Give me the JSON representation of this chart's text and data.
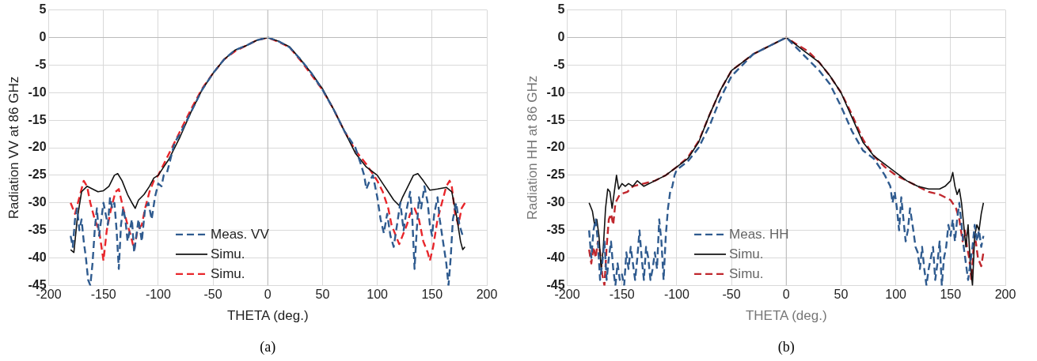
{
  "chart_data": [
    {
      "type": "line",
      "xlabel": "THETA (deg.)",
      "ylabel": "Radiation VV at 86 GHz",
      "annotations": [
        "(a)"
      ],
      "xlim": [
        -200,
        200
      ],
      "xticks": [
        -200,
        -150,
        -100,
        -50,
        0,
        50,
        100,
        150,
        200
      ],
      "ylim": [
        -45,
        5
      ],
      "yticks": [
        -45,
        -40,
        -35,
        -30,
        -25,
        -20,
        -15,
        -10,
        -5,
        0,
        5
      ],
      "grid": true,
      "legend": "bottom",
      "series": [
        {
          "name": "Meas. VV",
          "color": "#2f5b8f",
          "line_style": "dashed",
          "x": [
            -180,
            -178,
            -176,
            -174,
            -172,
            -170,
            -168,
            -166,
            -164,
            -162,
            -160,
            -158,
            -156,
            -154,
            -152,
            -150,
            -148,
            -146,
            -144,
            -142,
            -140,
            -138,
            -136,
            -134,
            -132,
            -130,
            -128,
            -126,
            -124,
            -122,
            -120,
            -118,
            -115,
            -112,
            -109,
            -106,
            -103,
            -100,
            -97,
            -95,
            -92,
            -90,
            -85,
            -80,
            -70,
            -60,
            -50,
            -40,
            -30,
            -20,
            -10,
            0,
            10,
            20,
            30,
            40,
            50,
            60,
            70,
            80,
            85,
            88,
            90,
            93,
            96,
            100,
            103,
            106,
            109,
            112,
            115,
            118,
            121,
            124,
            127,
            130,
            132,
            134,
            136,
            138,
            140,
            143,
            146,
            148,
            150,
            152,
            155,
            157,
            160,
            163,
            165,
            167,
            169,
            172,
            175,
            178
          ],
          "values": [
            -36,
            -38,
            -33,
            -31,
            -35,
            -33,
            -37,
            -40,
            -44,
            -45,
            -41,
            -35,
            -31,
            -36,
            -33,
            -30,
            -32,
            -34,
            -29,
            -31,
            -30,
            -35,
            -42,
            -34,
            -31,
            -33,
            -37,
            -35,
            -33,
            -39,
            -36,
            -33,
            -37,
            -31,
            -30,
            -33,
            -29,
            -26.5,
            -27,
            -25,
            -24.5,
            -23,
            -19,
            -17.5,
            -13.5,
            -9.5,
            -6.5,
            -4,
            -2.3,
            -1.5,
            -0.5,
            0,
            -0.7,
            -1.8,
            -4,
            -6.5,
            -9.5,
            -13,
            -17,
            -20,
            -23,
            -25,
            -27.5,
            -26,
            -25,
            -29,
            -33,
            -35.5,
            -32,
            -36,
            -38,
            -34,
            -30,
            -35,
            -31,
            -28,
            -33,
            -42,
            -35,
            -29,
            -31,
            -27,
            -30,
            -34,
            -36,
            -32,
            -29,
            -33,
            -37,
            -41,
            -45,
            -40,
            -33,
            -30,
            -34,
            -36
          ]
        },
        {
          "name": "Simu.",
          "color": "#111111",
          "line_style": "solid",
          "x": [
            -180,
            -177,
            -174,
            -170,
            -165,
            -160,
            -155,
            -150,
            -145,
            -140,
            -137,
            -133,
            -128,
            -124,
            -121,
            -118,
            -113,
            -108,
            -104,
            -100,
            -95,
            -90,
            -80,
            -70,
            -60,
            -50,
            -40,
            -30,
            -20,
            -10,
            0,
            10,
            20,
            30,
            40,
            50,
            60,
            70,
            80,
            90,
            100,
            105,
            110,
            115,
            120,
            123,
            128,
            133,
            137,
            142,
            148,
            155,
            163,
            168,
            172,
            176,
            178,
            180
          ],
          "values": [
            -38.5,
            -39,
            -33,
            -28,
            -27,
            -27.5,
            -28,
            -27.8,
            -27,
            -25,
            -24.7,
            -26,
            -28.5,
            -30,
            -31,
            -29.5,
            -28.5,
            -27,
            -25.5,
            -25,
            -23.5,
            -22,
            -18,
            -13.5,
            -9.5,
            -6.5,
            -4,
            -2.3,
            -1.5,
            -0.5,
            0,
            -0.7,
            -1.7,
            -4,
            -6.5,
            -9.3,
            -13,
            -17,
            -21,
            -23.5,
            -25,
            -26.5,
            -28,
            -29.5,
            -30.5,
            -29,
            -27,
            -25,
            -24.7,
            -26,
            -27.7,
            -27.5,
            -27.2,
            -28,
            -32,
            -37,
            -38.5,
            -38
          ]
        },
        {
          "name": "Simu.",
          "color": "#e8262b",
          "line_style": "dashed",
          "x": [
            -180,
            -176,
            -172,
            -168,
            -165,
            -162,
            -158,
            -154,
            -150,
            -147,
            -143,
            -139,
            -136,
            -132,
            -128,
            -125,
            -122,
            -119,
            -115,
            -112,
            -108,
            -104,
            -100,
            -95,
            -90,
            -80,
            -70,
            -60,
            -50,
            -40,
            -30,
            -20,
            -10,
            0,
            10,
            20,
            30,
            40,
            50,
            60,
            70,
            80,
            90,
            95,
            100,
            105,
            110,
            113,
            117,
            120,
            123,
            127,
            130,
            134,
            138,
            142,
            146,
            148,
            151,
            155,
            159,
            163,
            166,
            168,
            171,
            174,
            177,
            180
          ],
          "values": [
            -30,
            -32,
            -29,
            -26,
            -27,
            -30,
            -33,
            -35,
            -40.5,
            -35,
            -31,
            -28,
            -27.5,
            -31,
            -34,
            -36,
            -38.5,
            -35,
            -34,
            -31,
            -28,
            -26,
            -25,
            -23,
            -21,
            -17,
            -13,
            -9.3,
            -6.5,
            -4,
            -2.5,
            -1.5,
            -0.5,
            0,
            -0.8,
            -1.8,
            -4.2,
            -6.8,
            -9.5,
            -13,
            -17,
            -20.5,
            -23,
            -24.5,
            -26,
            -28,
            -31,
            -34,
            -36,
            -37.5,
            -36,
            -34,
            -32,
            -31,
            -33,
            -37,
            -39,
            -40.5,
            -38,
            -33,
            -30,
            -27,
            -26,
            -27,
            -32,
            -34,
            -31,
            -30
          ]
        }
      ]
    },
    {
      "type": "line",
      "xlabel": "THETA (deg.)",
      "ylabel": "Radiation HH at 86 GHz",
      "annotations": [
        "(b)"
      ],
      "xlim": [
        -200,
        200
      ],
      "xticks": [
        -200,
        -150,
        -100,
        -50,
        0,
        50,
        100,
        150,
        200
      ],
      "ylim": [
        -45,
        5
      ],
      "yticks": [
        -45,
        -40,
        -35,
        -30,
        -25,
        -20,
        -15,
        -10,
        -5,
        0,
        5
      ],
      "grid": true,
      "legend": "bottom",
      "series": [
        {
          "name": "Meas. HH",
          "color": "#2f5b8f",
          "line_style": "dashed",
          "x": [
            -180,
            -178,
            -176,
            -174,
            -172,
            -170,
            -168,
            -166,
            -164,
            -162,
            -160,
            -158,
            -156,
            -154,
            -152,
            -150,
            -148,
            -146,
            -144,
            -142,
            -140,
            -138,
            -136,
            -134,
            -132,
            -130,
            -128,
            -126,
            -124,
            -122,
            -120,
            -118,
            -116,
            -114,
            -112,
            -110,
            -108,
            -106,
            -104,
            -102,
            -100,
            -90,
            -80,
            -70,
            -60,
            -50,
            -40,
            -30,
            -20,
            -10,
            0,
            10,
            20,
            30,
            40,
            50,
            60,
            70,
            80,
            85,
            90,
            95,
            97,
            99,
            101,
            103,
            105,
            107,
            109,
            111,
            113,
            116,
            118,
            120,
            122,
            124,
            126,
            128,
            130,
            132,
            134,
            136,
            138,
            140,
            142,
            144,
            146,
            148,
            150,
            152,
            154,
            156,
            158,
            160,
            162,
            164,
            166,
            168,
            170,
            172,
            174,
            176,
            178,
            180
          ],
          "values": [
            -35,
            -40,
            -35,
            -33,
            -37,
            -44,
            -41,
            -37,
            -44,
            -40,
            -37,
            -42,
            -45,
            -41,
            -44,
            -43,
            -45,
            -39,
            -42,
            -38,
            -41,
            -44,
            -40,
            -35,
            -40,
            -44,
            -38,
            -40,
            -44,
            -42,
            -39,
            -42,
            -33,
            -37,
            -44,
            -36,
            -31,
            -28,
            -27,
            -25,
            -24,
            -22.5,
            -20,
            -16,
            -11,
            -7,
            -5,
            -3,
            -2,
            -1,
            0,
            -2,
            -4,
            -6,
            -8.5,
            -12.5,
            -17,
            -20.5,
            -22,
            -23.5,
            -25,
            -27,
            -30,
            -28,
            -31,
            -35,
            -29,
            -33,
            -37,
            -35,
            -31,
            -35,
            -38,
            -39,
            -42,
            -38,
            -42,
            -45,
            -42,
            -40,
            -38,
            -44,
            -41,
            -37,
            -45,
            -40,
            -38,
            -34,
            -36,
            -33,
            -37,
            -33,
            -30,
            -34,
            -38,
            -41,
            -44,
            -41,
            -38,
            -34,
            -37,
            -35,
            -38,
            -36
          ]
        },
        {
          "name": "Simu.",
          "color": "#111111",
          "line_style": "solid",
          "x": [
            -180,
            -177,
            -175,
            -173,
            -171,
            -169,
            -167,
            -165,
            -163,
            -161,
            -159,
            -157,
            -155,
            -153,
            -150,
            -147,
            -144,
            -140,
            -136,
            -130,
            -120,
            -110,
            -100,
            -90,
            -80,
            -70,
            -60,
            -50,
            -40,
            -30,
            -20,
            -10,
            0,
            10,
            20,
            30,
            40,
            50,
            60,
            70,
            80,
            90,
            100,
            110,
            120,
            130,
            140,
            145,
            150,
            152,
            154,
            156,
            158,
            160,
            162,
            164,
            166,
            168,
            170,
            172,
            174,
            176,
            178,
            180
          ],
          "values": [
            -30,
            -31.5,
            -34,
            -33,
            -36,
            -42,
            -38,
            -31,
            -27.5,
            -28,
            -31,
            -28,
            -25,
            -27.5,
            -26.5,
            -27,
            -26.5,
            -27,
            -26,
            -27,
            -26,
            -25,
            -23.5,
            -22,
            -19,
            -14,
            -9.5,
            -6,
            -4.5,
            -3,
            -2,
            -1,
            0,
            -1.5,
            -3,
            -4.5,
            -7,
            -10,
            -14.5,
            -19,
            -21.5,
            -23,
            -24.5,
            -26,
            -27,
            -27.5,
            -27.5,
            -27,
            -26,
            -24.5,
            -27,
            -28.5,
            -27.5,
            -30,
            -34,
            -38,
            -34,
            -41,
            -45,
            -36,
            -34,
            -35,
            -32,
            -30
          ]
        },
        {
          "name": "Simu.",
          "color": "#c0272d",
          "line_style": "dashed",
          "x": [
            -180,
            -178,
            -176,
            -174,
            -172,
            -170,
            -168,
            -166,
            -164,
            -162,
            -160,
            -158,
            -156,
            -152,
            -145,
            -140,
            -130,
            -120,
            -110,
            -100,
            -90,
            -80,
            -70,
            -60,
            -50,
            -40,
            -30,
            -20,
            -10,
            0,
            10,
            20,
            30,
            40,
            50,
            60,
            70,
            80,
            90,
            100,
            110,
            120,
            130,
            140,
            150,
            155,
            158,
            161,
            163,
            165,
            167,
            169,
            171,
            173,
            175,
            178,
            180
          ],
          "values": [
            -38.5,
            -41,
            -38,
            -40,
            -37,
            -39,
            -43,
            -45,
            -38,
            -33,
            -32,
            -34,
            -30,
            -28.5,
            -28,
            -27,
            -26.5,
            -26,
            -25,
            -23.5,
            -21.8,
            -18.8,
            -14,
            -9.5,
            -6,
            -4.5,
            -3,
            -2,
            -1,
            0,
            -1.3,
            -2.5,
            -4.5,
            -7,
            -10,
            -14,
            -18.5,
            -21.5,
            -23.5,
            -25,
            -26,
            -27,
            -28,
            -28.5,
            -29.5,
            -31,
            -33,
            -37,
            -35,
            -38,
            -40,
            -44,
            -38,
            -37,
            -40,
            -41.5,
            -39
          ]
        }
      ]
    }
  ]
}
